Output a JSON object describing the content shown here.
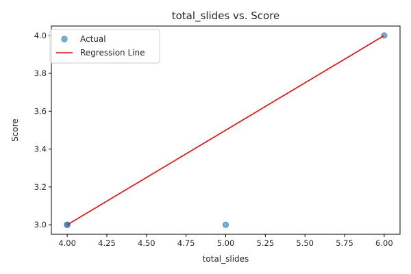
{
  "chart_data": {
    "type": "scatter",
    "title": "total_slides vs. Score",
    "xlabel": "total_slides",
    "ylabel": "Score",
    "xlim": [
      3.9,
      6.1
    ],
    "ylim": [
      2.95,
      4.05
    ],
    "xticks": [
      4.0,
      4.25,
      4.5,
      4.75,
      5.0,
      5.25,
      5.5,
      5.75,
      6.0
    ],
    "xtick_labels": [
      "4.00",
      "4.25",
      "4.50",
      "4.75",
      "5.00",
      "5.25",
      "5.50",
      "5.75",
      "6.00"
    ],
    "yticks": [
      3.0,
      3.2,
      3.4,
      3.6,
      3.8,
      4.0
    ],
    "ytick_labels": [
      "3.0",
      "3.2",
      "3.4",
      "3.6",
      "3.8",
      "4.0"
    ],
    "grid": false,
    "legend_position": "top-left",
    "series": [
      {
        "name": "Actual",
        "kind": "scatter",
        "color": "#1f77b4",
        "alpha": 0.6,
        "x": [
          4,
          4,
          5,
          6
        ],
        "y": [
          3.0,
          3.0,
          3.0,
          4.0
        ]
      },
      {
        "name": "Regression Line",
        "kind": "line",
        "color": "#ff0000",
        "x": [
          4,
          6
        ],
        "y": [
          3.0,
          4.0
        ]
      }
    ]
  }
}
